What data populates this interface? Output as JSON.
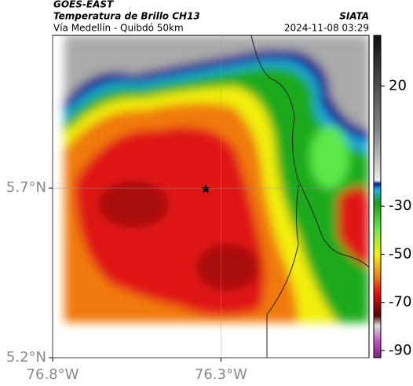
{
  "header": {
    "title": "GOES-EAST",
    "subtitle": "Temperatura de Brillo CH13",
    "route": "Vía Medellín - Quibdó 50km",
    "source": "SIATA",
    "timestamp": "2024-11-08 03:29"
  },
  "map": {
    "xlim": [
      -76.8,
      -75.86
    ],
    "ylim": [
      5.2,
      6.15
    ],
    "xticks": [
      {
        "value": -76.8,
        "label": "76.8°W"
      },
      {
        "value": -76.3,
        "label": "76.3°W"
      }
    ],
    "yticks": [
      {
        "value": 5.2,
        "label": "5.2°N"
      },
      {
        "value": 5.7,
        "label": "5.7°N"
      }
    ]
  },
  "colorbar": {
    "lim": [
      41,
      -93
    ],
    "ticks": [
      20,
      -30,
      -50,
      -70,
      -90
    ]
  }
}
